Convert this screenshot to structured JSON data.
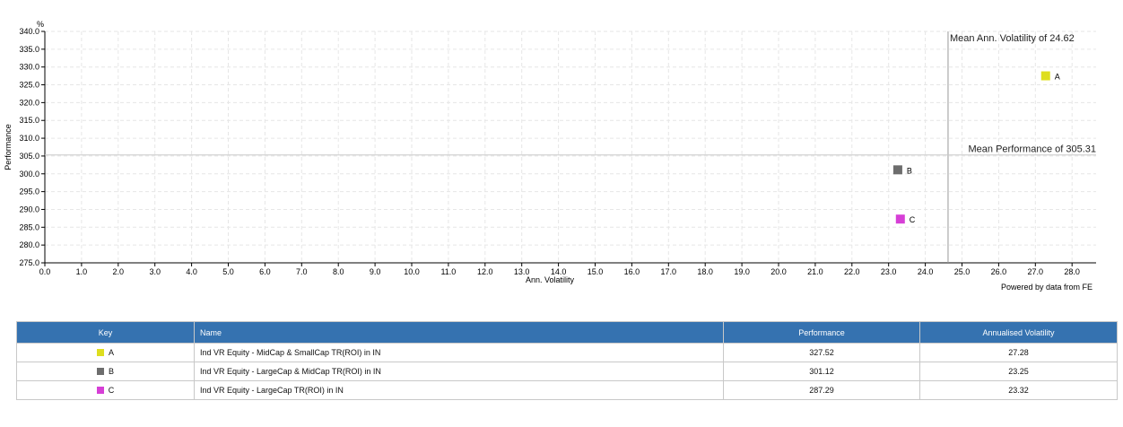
{
  "chart_data": {
    "type": "scatter",
    "y_unit": "%",
    "xlabel": "Ann. Volatility",
    "ylabel": "Performance",
    "xlim": [
      0,
      28.5
    ],
    "ylim": [
      275,
      340
    ],
    "x_ticks": [
      "0.0",
      "1.0",
      "2.0",
      "3.0",
      "4.0",
      "5.0",
      "6.0",
      "7.0",
      "8.0",
      "9.0",
      "10.0",
      "11.0",
      "12.0",
      "13.0",
      "14.0",
      "15.0",
      "16.0",
      "17.0",
      "18.0",
      "19.0",
      "20.0",
      "21.0",
      "22.0",
      "23.0",
      "24.0",
      "25.0",
      "26.0",
      "27.0",
      "28.0"
    ],
    "y_ticks": [
      "275.0",
      "280.0",
      "285.0",
      "290.0",
      "295.0",
      "300.0",
      "305.0",
      "310.0",
      "315.0",
      "320.0",
      "325.0",
      "330.0",
      "335.0",
      "340.0"
    ],
    "grid": true,
    "points": [
      {
        "key": "A",
        "x": 27.28,
        "y": 327.52,
        "color": "#dede1f"
      },
      {
        "key": "B",
        "x": 23.25,
        "y": 301.12,
        "color": "#6d6d6d"
      },
      {
        "key": "C",
        "x": 23.32,
        "y": 287.29,
        "color": "#d63fd6"
      }
    ],
    "reference_lines": {
      "vertical": {
        "value": 24.62,
        "label": "Mean Ann. Volatility of 24.62"
      },
      "horizontal": {
        "value": 305.31,
        "label": "Mean Performance of 305.31"
      }
    }
  },
  "credit": "Powered by data from FE",
  "table": {
    "headers": {
      "key": "Key",
      "name": "Name",
      "performance": "Performance",
      "volatility": "Annualised Volatility"
    },
    "rows": [
      {
        "key": "A",
        "color": "#dede1f",
        "name": "Ind VR Equity - MidCap & SmallCap TR(ROI) in IN",
        "performance": "327.52",
        "volatility": "27.28"
      },
      {
        "key": "B",
        "color": "#6d6d6d",
        "name": "Ind VR Equity - LargeCap & MidCap TR(ROI) in IN",
        "performance": "301.12",
        "volatility": "23.25"
      },
      {
        "key": "C",
        "color": "#d63fd6",
        "name": "Ind VR Equity - LargeCap TR(ROI) in IN",
        "performance": "287.29",
        "volatility": "23.32"
      }
    ]
  }
}
